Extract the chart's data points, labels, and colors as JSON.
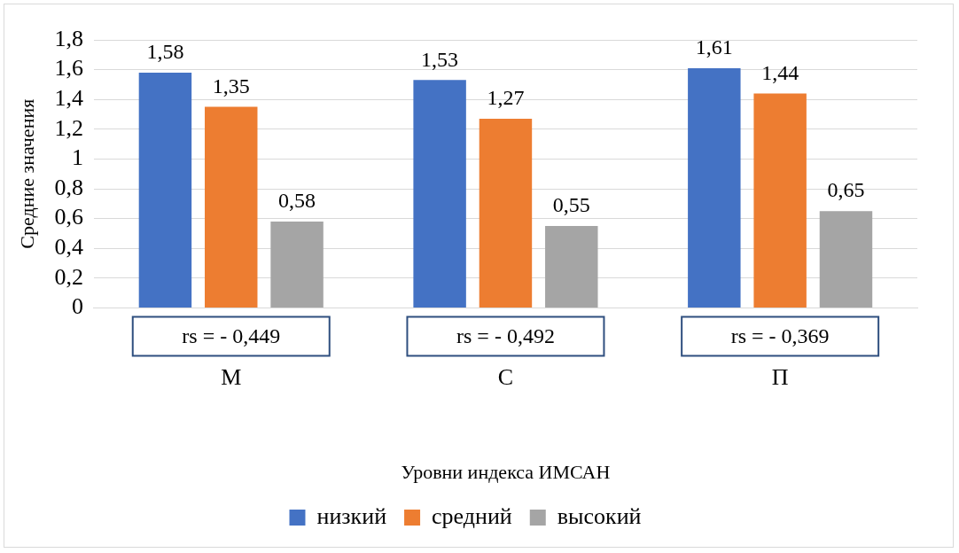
{
  "chart_data": {
    "type": "bar",
    "xlabel": "Уровни индекса ИМСАН",
    "ylabel": "Средние значения",
    "categories": [
      "М",
      "С",
      "П"
    ],
    "series": [
      {
        "name": "низкий",
        "color": "#4472c4",
        "values": [
          1.58,
          1.53,
          1.61
        ],
        "value_labels": [
          "1,58",
          "1,53",
          "1,61"
        ]
      },
      {
        "name": "средний",
        "color": "#ed7d31",
        "values": [
          1.35,
          1.27,
          1.44
        ],
        "value_labels": [
          "1,35",
          "1,27",
          "1,44"
        ]
      },
      {
        "name": "высокий",
        "color": "#a5a5a5",
        "values": [
          0.58,
          0.55,
          0.65
        ],
        "value_labels": [
          "0,58",
          "0,55",
          "0,65"
        ]
      }
    ],
    "ylim": [
      0,
      1.8
    ],
    "yticks": [
      0,
      {
        "value": 0.2,
        "label": "0,2"
      },
      {
        "value": 0.4,
        "label": "0,4"
      },
      {
        "value": 0.6,
        "label": "0,6"
      },
      {
        "value": 0.8,
        "label": "0,8"
      },
      1,
      {
        "value": 1.2,
        "label": "1,2"
      },
      {
        "value": 1.4,
        "label": "1,4"
      },
      {
        "value": 1.6,
        "label": "1,6"
      },
      {
        "value": 1.8,
        "label": "1,8"
      }
    ],
    "grid": "y",
    "legend": "bottom",
    "annotations": [
      "rs = - 0,449",
      "rs = - 0,492",
      "rs = - 0,369"
    ]
  }
}
